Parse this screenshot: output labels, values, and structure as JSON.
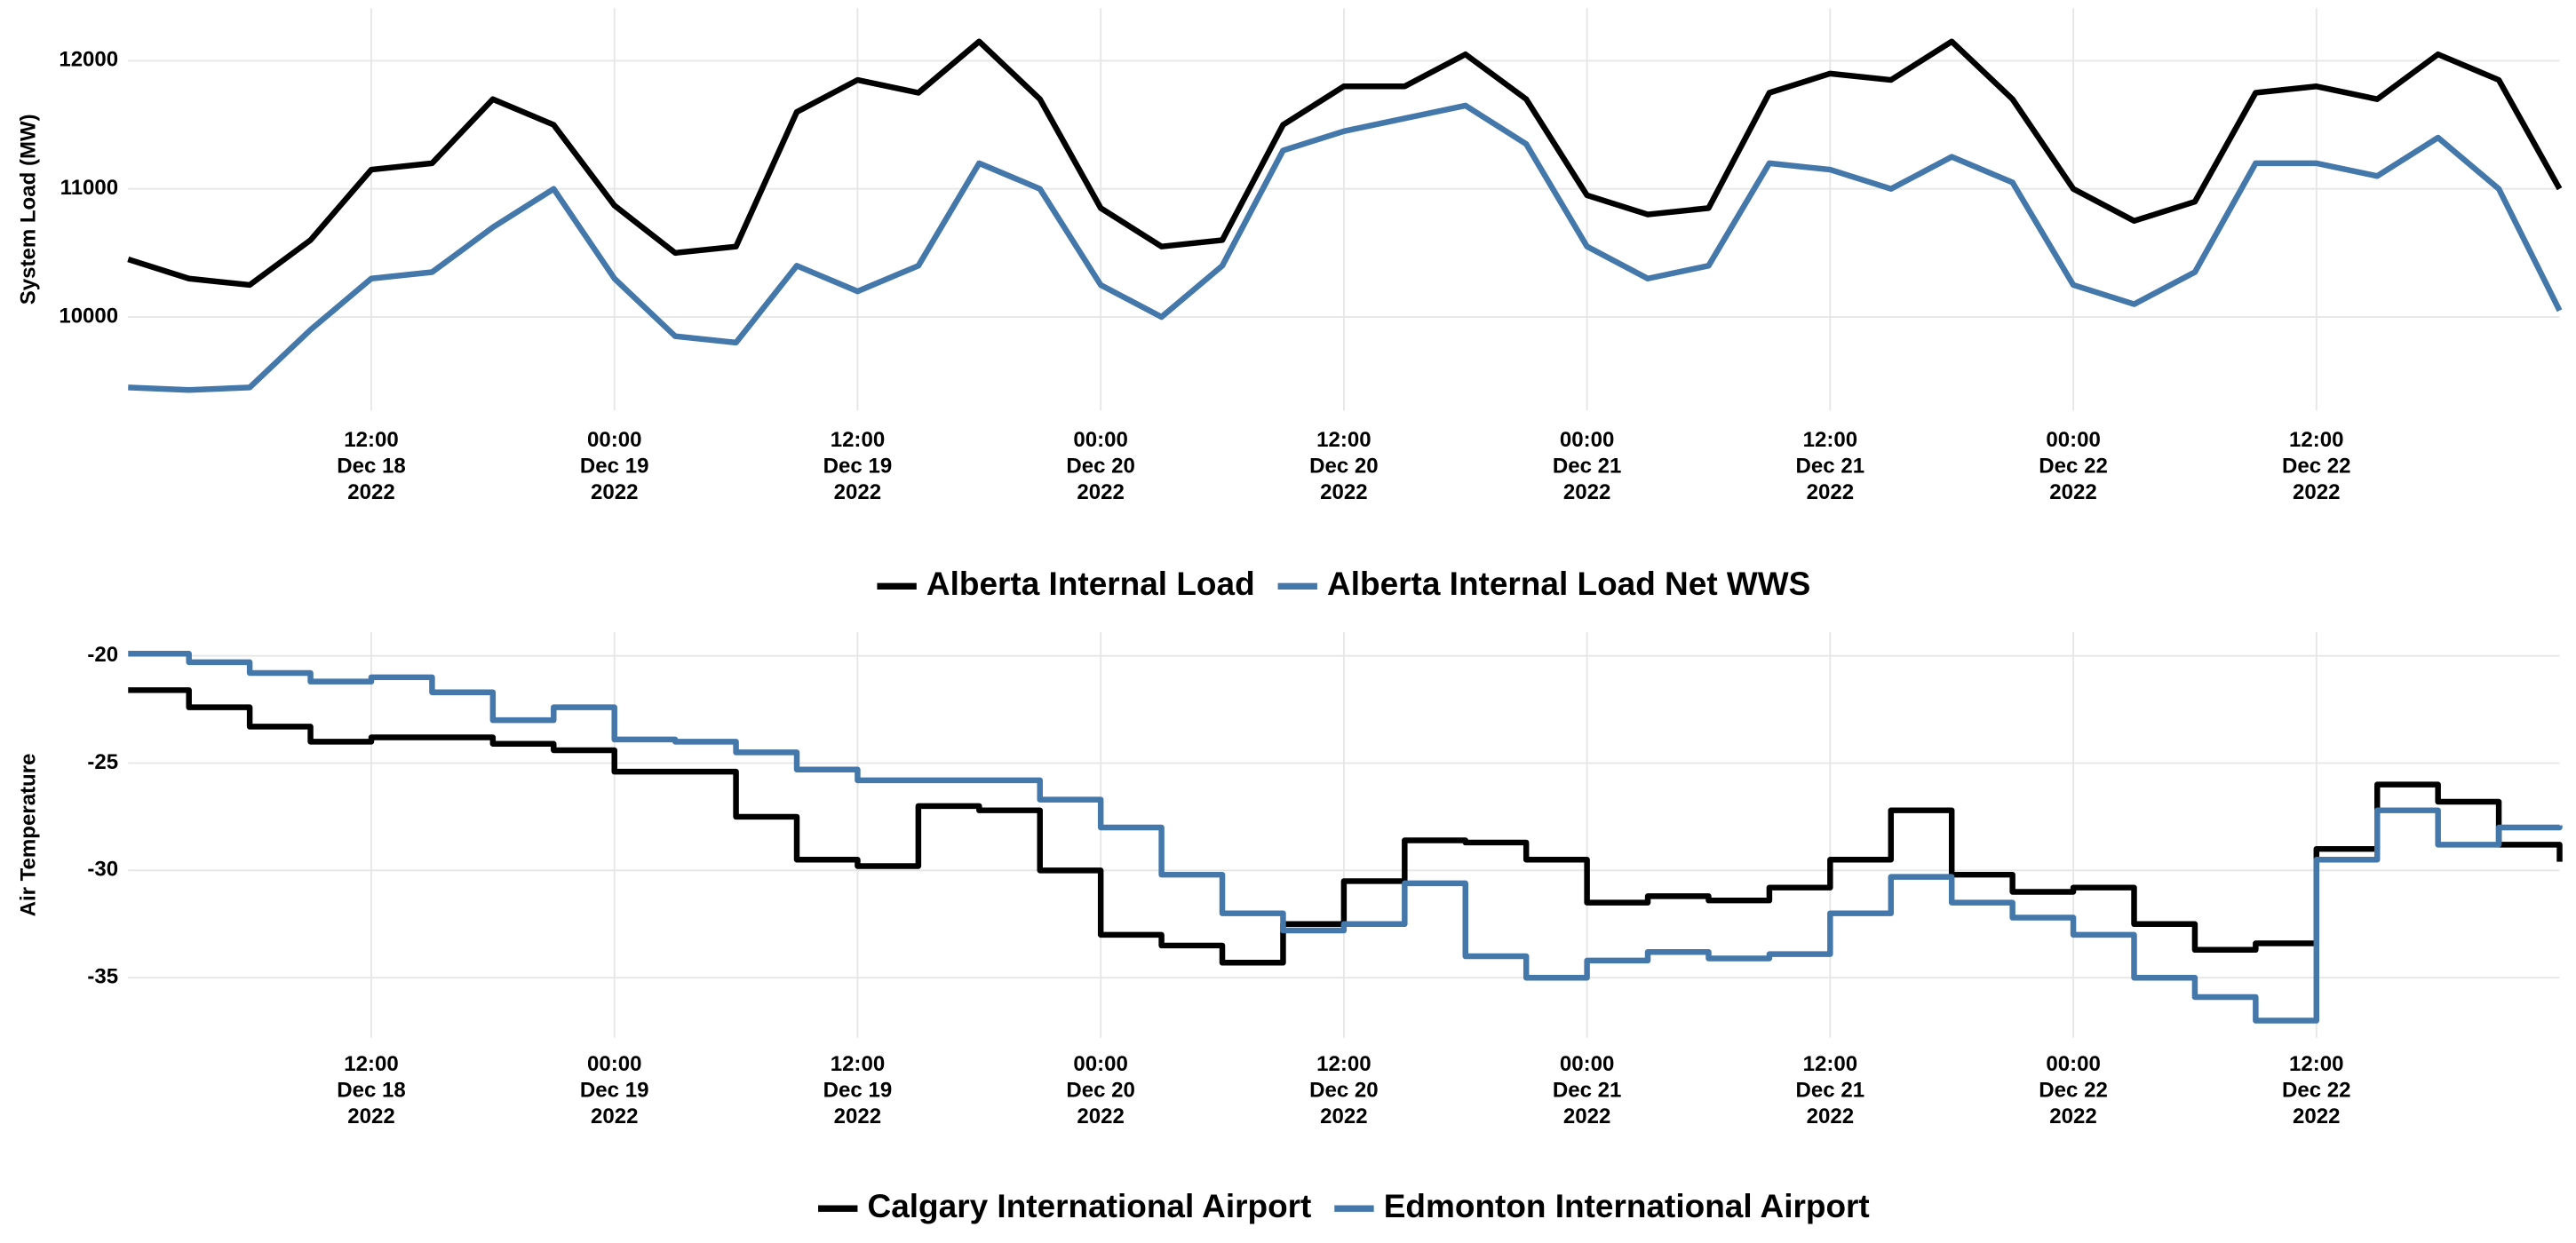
{
  "chart_data": [
    {
      "type": "line",
      "y_label": "System Load (MW)",
      "step": false,
      "grid": true,
      "legend": "bottom",
      "x": [
        "2022-12-18 00:00",
        "2022-12-18 03:00",
        "2022-12-18 06:00",
        "2022-12-18 09:00",
        "2022-12-18 12:00",
        "2022-12-18 15:00",
        "2022-12-18 18:00",
        "2022-12-18 21:00",
        "2022-12-19 00:00",
        "2022-12-19 03:00",
        "2022-12-19 06:00",
        "2022-12-19 09:00",
        "2022-12-19 12:00",
        "2022-12-19 15:00",
        "2022-12-19 18:00",
        "2022-12-19 21:00",
        "2022-12-20 00:00",
        "2022-12-20 03:00",
        "2022-12-20 06:00",
        "2022-12-20 09:00",
        "2022-12-20 12:00",
        "2022-12-20 15:00",
        "2022-12-20 18:00",
        "2022-12-20 21:00",
        "2022-12-21 00:00",
        "2022-12-21 03:00",
        "2022-12-21 06:00",
        "2022-12-21 09:00",
        "2022-12-21 12:00",
        "2022-12-21 15:00",
        "2022-12-21 18:00",
        "2022-12-21 21:00",
        "2022-12-22 00:00",
        "2022-12-22 03:00",
        "2022-12-22 06:00",
        "2022-12-22 09:00",
        "2022-12-22 12:00",
        "2022-12-22 15:00",
        "2022-12-22 18:00",
        "2022-12-22 21:00",
        "2022-12-23 00:00"
      ],
      "xlim": [
        "2022-12-18 00:00",
        "2022-12-23 00:00"
      ],
      "xticks": [
        {
          "value": "2022-12-18 12:00",
          "label": "12:00\nDec 18\n2022"
        },
        {
          "value": "2022-12-19 00:00",
          "label": "00:00\nDec 19\n2022"
        },
        {
          "value": "2022-12-19 12:00",
          "label": "12:00\nDec 19\n2022"
        },
        {
          "value": "2022-12-20 00:00",
          "label": "00:00\nDec 20\n2022"
        },
        {
          "value": "2022-12-20 12:00",
          "label": "12:00\nDec 20\n2022"
        },
        {
          "value": "2022-12-21 00:00",
          "label": "00:00\nDec 21\n2022"
        },
        {
          "value": "2022-12-21 12:00",
          "label": "12:00\nDec 21\n2022"
        },
        {
          "value": "2022-12-22 00:00",
          "label": "00:00\nDec 22\n2022"
        },
        {
          "value": "2022-12-22 12:00",
          "label": "12:00\nDec 22\n2022"
        }
      ],
      "ylim": [
        9270,
        12410
      ],
      "yticks": [
        10000,
        11000,
        12000
      ],
      "series": [
        {
          "name": "Alberta Internal Load",
          "color": "#000000",
          "values": [
            10450,
            10300,
            10250,
            10600,
            11150,
            11200,
            11700,
            11500,
            10870,
            10500,
            10550,
            11600,
            11850,
            11750,
            12150,
            11700,
            10850,
            10550,
            10600,
            11500,
            11800,
            11800,
            12050,
            11700,
            10950,
            10800,
            10850,
            11750,
            11900,
            11850,
            12150,
            11700,
            11000,
            10750,
            10900,
            11750,
            11800,
            11700,
            12050,
            11850,
            11000
          ]
        },
        {
          "name": "Alberta Internal Load Net WWS",
          "color": "#4477aa",
          "values": [
            9450,
            9430,
            9450,
            9900,
            10300,
            10350,
            10700,
            11000,
            10300,
            9850,
            9800,
            10400,
            10200,
            10400,
            11200,
            11000,
            10250,
            10000,
            10400,
            11300,
            11450,
            11550,
            11650,
            11350,
            10550,
            10300,
            10400,
            11200,
            11150,
            11000,
            11250,
            11050,
            10250,
            10100,
            10350,
            11200,
            11200,
            11100,
            11400,
            11000,
            10050
          ]
        }
      ]
    },
    {
      "type": "line",
      "y_label": "Air Temperature",
      "step": true,
      "grid": true,
      "legend": "bottom",
      "x": [
        "2022-12-18 00:00",
        "2022-12-18 03:00",
        "2022-12-18 06:00",
        "2022-12-18 09:00",
        "2022-12-18 12:00",
        "2022-12-18 15:00",
        "2022-12-18 18:00",
        "2022-12-18 21:00",
        "2022-12-19 00:00",
        "2022-12-19 03:00",
        "2022-12-19 06:00",
        "2022-12-19 09:00",
        "2022-12-19 12:00",
        "2022-12-19 15:00",
        "2022-12-19 18:00",
        "2022-12-19 21:00",
        "2022-12-20 00:00",
        "2022-12-20 03:00",
        "2022-12-20 06:00",
        "2022-12-20 09:00",
        "2022-12-20 12:00",
        "2022-12-20 15:00",
        "2022-12-20 18:00",
        "2022-12-20 21:00",
        "2022-12-21 00:00",
        "2022-12-21 03:00",
        "2022-12-21 06:00",
        "2022-12-21 09:00",
        "2022-12-21 12:00",
        "2022-12-21 15:00",
        "2022-12-21 18:00",
        "2022-12-21 21:00",
        "2022-12-22 00:00",
        "2022-12-22 03:00",
        "2022-12-22 06:00",
        "2022-12-22 09:00",
        "2022-12-22 12:00",
        "2022-12-22 15:00",
        "2022-12-22 18:00",
        "2022-12-22 21:00",
        "2022-12-23 00:00"
      ],
      "xlim": [
        "2022-12-18 00:00",
        "2022-12-23 00:00"
      ],
      "xticks": [
        {
          "value": "2022-12-18 12:00",
          "label": "12:00\nDec 18\n2022"
        },
        {
          "value": "2022-12-19 00:00",
          "label": "00:00\nDec 19\n2022"
        },
        {
          "value": "2022-12-19 12:00",
          "label": "12:00\nDec 19\n2022"
        },
        {
          "value": "2022-12-20 00:00",
          "label": "00:00\nDec 20\n2022"
        },
        {
          "value": "2022-12-20 12:00",
          "label": "12:00\nDec 20\n2022"
        },
        {
          "value": "2022-12-21 00:00",
          "label": "00:00\nDec 21\n2022"
        },
        {
          "value": "2022-12-21 12:00",
          "label": "12:00\nDec 21\n2022"
        },
        {
          "value": "2022-12-22 00:00",
          "label": "00:00\nDec 22\n2022"
        },
        {
          "value": "2022-12-22 12:00",
          "label": "12:00\nDec 22\n2022"
        }
      ],
      "ylim": [
        -37.8,
        -18.9
      ],
      "yticks": [
        -35,
        -30,
        -25,
        -20
      ],
      "series": [
        {
          "name": "Calgary International Airport",
          "color": "#000000",
          "values": [
            -21.6,
            -22.4,
            -23.3,
            -24.0,
            -23.8,
            -23.8,
            -24.1,
            -24.4,
            -25.4,
            -25.4,
            -27.5,
            -29.5,
            -29.8,
            -27.0,
            -27.2,
            -30.0,
            -33.0,
            -33.5,
            -34.3,
            -32.5,
            -30.5,
            -28.6,
            -28.7,
            -29.5,
            -31.5,
            -31.2,
            -31.4,
            -30.8,
            -29.5,
            -27.2,
            -30.2,
            -31.0,
            -30.8,
            -32.5,
            -33.7,
            -33.4,
            -29.0,
            -26.0,
            -26.8,
            -28.8,
            -29.6
          ]
        },
        {
          "name": "Edmonton International Airport",
          "color": "#4477aa",
          "values": [
            -19.9,
            -20.3,
            -20.8,
            -21.2,
            -21.0,
            -21.7,
            -23.0,
            -22.4,
            -23.9,
            -24.0,
            -24.5,
            -25.3,
            -25.8,
            -25.8,
            -25.8,
            -26.7,
            -28.0,
            -30.2,
            -32.0,
            -32.8,
            -32.5,
            -30.6,
            -34.0,
            -35.0,
            -34.2,
            -33.8,
            -34.1,
            -33.9,
            -32.0,
            -30.3,
            -31.5,
            -32.2,
            -33.0,
            -35.0,
            -35.9,
            -37.0,
            -29.5,
            -27.2,
            -28.8,
            -28.0,
            -27.9
          ]
        }
      ]
    }
  ]
}
